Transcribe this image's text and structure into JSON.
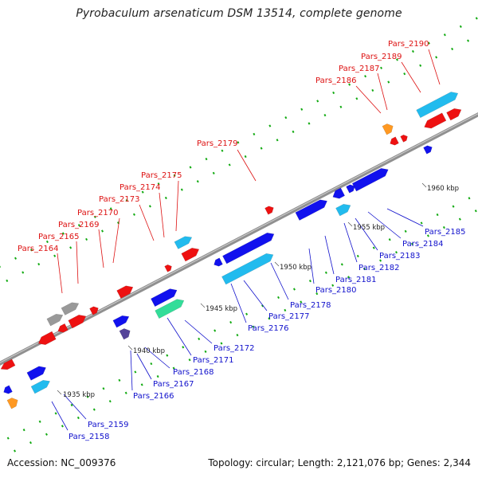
{
  "title": "Pyrobaculum arsenaticum DSM 13514, complete genome",
  "accession": "Accession: NC_009376",
  "summary": "Topology: circular; Length: 2,121,076 bp; Genes: 2,344",
  "colors": {
    "red": "#ee1111",
    "blue": "#1111ee",
    "cyan": "#22bbee",
    "grey": "#999999",
    "orange": "#ff9922",
    "green": "#33dd99",
    "purple": "#554499",
    "backbone": "#909090",
    "top_label": "#dd1111",
    "bottom_label": "#1111cc",
    "tick": "#11aa11"
  },
  "scale_labels": [
    "1935 kbp",
    "1940 kbp",
    "1945 kbp",
    "1950 kbp",
    "1955 kbp",
    "1960 kbp"
  ],
  "top_labels": [
    "Pars_2164",
    "Pars_2165",
    "Pars_2169",
    "Pars_2170",
    "Pars_2173",
    "Pars_2174",
    "Pars_2175",
    "Pars_2179",
    "Pars_2186",
    "Pars_2187",
    "Pars_2189",
    "Pars_2190"
  ],
  "bottom_labels": [
    "Pars_2158",
    "Pars_2159",
    "Pars_2166",
    "Pars_2167",
    "Pars_2168",
    "Pars_2171",
    "Pars_2172",
    "Pars_2176",
    "Pars_2177",
    "Pars_2178",
    "Pars_2180",
    "Pars_2181",
    "Pars_2182",
    "Pars_2183",
    "Pars_2184",
    "Pars_2185"
  ]
}
